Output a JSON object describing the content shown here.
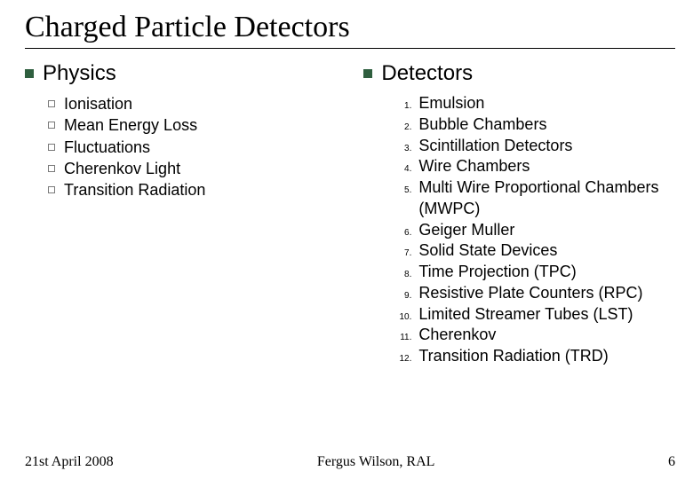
{
  "title": "Charged Particle Detectors",
  "left": {
    "heading": "Physics",
    "items": [
      "Ionisation",
      "Mean Energy Loss",
      "Fluctuations",
      "Cherenkov Light",
      "Transition Radiation"
    ]
  },
  "right": {
    "heading": "Detectors",
    "items": [
      "Emulsion",
      "Bubble Chambers",
      "Scintillation Detectors",
      "Wire Chambers",
      "Multi Wire Proportional Chambers (MWPC)",
      "Geiger Muller",
      "Solid State Devices",
      "Time Projection (TPC)",
      "Resistive Plate Counters (RPC)",
      "Limited Streamer Tubes (LST)",
      "Cherenkov",
      "Transition Radiation (TRD)"
    ]
  },
  "footer": {
    "date": "21st April 2008",
    "author": "Fergus Wilson, RAL",
    "page": "6"
  },
  "style": {
    "title_font": "Times New Roman",
    "title_fontsize": 34,
    "body_font": "Arial",
    "h2_fontsize": 24,
    "item_fontsize": 18,
    "num_fontsize": 10,
    "bullet_color": "#2f5f3f",
    "sub_bullet_border": "#7a7a7a",
    "text_color": "#000000",
    "background": "#ffffff",
    "rule_color": "#000000"
  }
}
